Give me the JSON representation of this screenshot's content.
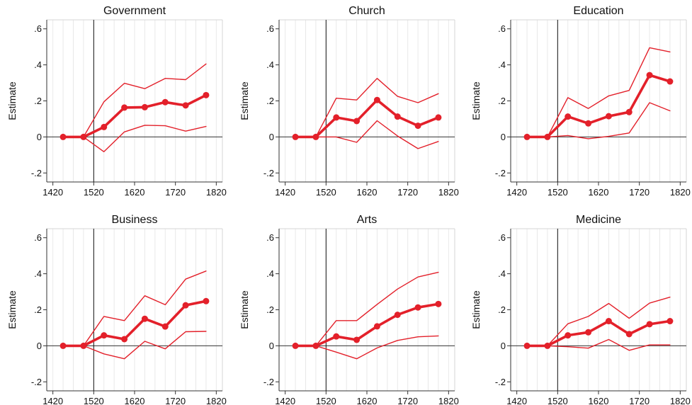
{
  "chart_data": [
    {
      "type": "line",
      "title": "Government",
      "ylabel": "Estimate",
      "xlabel": "",
      "xlim": [
        1405,
        1835
      ],
      "ylim": [
        -0.25,
        0.65
      ],
      "xticks": [
        1420,
        1520,
        1620,
        1720,
        1820
      ],
      "xtick_labels": [
        "1420",
        "1520",
        "1620",
        "1720",
        "1820"
      ],
      "yticks": [
        -0.2,
        0,
        0.2,
        0.4,
        0.6
      ],
      "ytick_labels": [
        "-.2",
        "0",
        ".2",
        ".4",
        ".6"
      ],
      "vline": 1520,
      "x": [
        1445,
        1495,
        1545,
        1595,
        1645,
        1695,
        1745,
        1795
      ],
      "series": [
        {
          "role": "estimate",
          "values": [
            0,
            0,
            0.055,
            0.163,
            0.165,
            0.193,
            0.175,
            0.232
          ]
        },
        {
          "role": "upper",
          "values": [
            0,
            0,
            0.195,
            0.298,
            0.268,
            0.325,
            0.318,
            0.405
          ]
        },
        {
          "role": "lower",
          "values": [
            0,
            0,
            -0.082,
            0.028,
            0.065,
            0.062,
            0.032,
            0.058
          ]
        }
      ]
    },
    {
      "type": "line",
      "title": "Church",
      "ylabel": "Estimate",
      "xlabel": "",
      "xlim": [
        1405,
        1835
      ],
      "ylim": [
        -0.25,
        0.65
      ],
      "xticks": [
        1420,
        1520,
        1620,
        1720,
        1820
      ],
      "xtick_labels": [
        "1420",
        "1520",
        "1620",
        "1720",
        "1820"
      ],
      "yticks": [
        -0.2,
        0,
        0.2,
        0.4,
        0.6
      ],
      "ytick_labels": [
        "-.2",
        "0",
        ".2",
        ".4",
        ".6"
      ],
      "vline": 1520,
      "x": [
        1445,
        1495,
        1545,
        1595,
        1645,
        1695,
        1745,
        1795
      ],
      "series": [
        {
          "role": "estimate",
          "values": [
            0,
            0,
            0.108,
            0.088,
            0.205,
            0.113,
            0.062,
            0.108
          ]
        },
        {
          "role": "upper",
          "values": [
            0,
            0,
            0.215,
            0.205,
            0.325,
            0.225,
            0.19,
            0.24
          ]
        },
        {
          "role": "lower",
          "values": [
            0,
            0,
            0.0,
            -0.03,
            0.09,
            0.005,
            -0.065,
            -0.025
          ]
        }
      ]
    },
    {
      "type": "line",
      "title": "Education",
      "ylabel": "Estimate",
      "xlabel": "",
      "xlim": [
        1405,
        1835
      ],
      "ylim": [
        -0.25,
        0.65
      ],
      "xticks": [
        1420,
        1520,
        1620,
        1720,
        1820
      ],
      "xtick_labels": [
        "1420",
        "1520",
        "1620",
        "1720",
        "1820"
      ],
      "yticks": [
        -0.2,
        0,
        0.2,
        0.4,
        0.6
      ],
      "ytick_labels": [
        "-.2",
        "0",
        ".2",
        ".4",
        ".6"
      ],
      "vline": 1520,
      "x": [
        1445,
        1495,
        1545,
        1595,
        1645,
        1695,
        1745,
        1795
      ],
      "series": [
        {
          "role": "estimate",
          "values": [
            0,
            0,
            0.113,
            0.075,
            0.115,
            0.138,
            0.343,
            0.308
          ]
        },
        {
          "role": "upper",
          "values": [
            0,
            0,
            0.218,
            0.158,
            0.228,
            0.258,
            0.495,
            0.472
          ]
        },
        {
          "role": "lower",
          "values": [
            0,
            0,
            0.008,
            -0.01,
            0.003,
            0.022,
            0.19,
            0.145
          ]
        }
      ]
    },
    {
      "type": "line",
      "title": "Business",
      "ylabel": "Estimate",
      "xlabel": "",
      "xlim": [
        1405,
        1835
      ],
      "ylim": [
        -0.25,
        0.65
      ],
      "xticks": [
        1420,
        1520,
        1620,
        1720,
        1820
      ],
      "xtick_labels": [
        "1420",
        "1520",
        "1620",
        "1720",
        "1820"
      ],
      "yticks": [
        -0.2,
        0,
        0.2,
        0.4,
        0.6
      ],
      "ytick_labels": [
        "-.2",
        "0",
        ".2",
        ".4",
        ".6"
      ],
      "vline": 1520,
      "x": [
        1445,
        1495,
        1545,
        1595,
        1645,
        1695,
        1745,
        1795
      ],
      "series": [
        {
          "role": "estimate",
          "values": [
            0,
            0,
            0.058,
            0.037,
            0.15,
            0.107,
            0.225,
            0.248
          ]
        },
        {
          "role": "upper",
          "values": [
            0,
            0,
            0.163,
            0.14,
            0.278,
            0.228,
            0.37,
            0.415
          ]
        },
        {
          "role": "lower",
          "values": [
            0,
            0,
            -0.045,
            -0.072,
            0.025,
            -0.017,
            0.078,
            0.08
          ]
        }
      ]
    },
    {
      "type": "line",
      "title": "Arts",
      "ylabel": "Estimate",
      "xlabel": "",
      "xlim": [
        1405,
        1835
      ],
      "ylim": [
        -0.25,
        0.65
      ],
      "xticks": [
        1420,
        1520,
        1620,
        1720,
        1820
      ],
      "xtick_labels": [
        "1420",
        "1520",
        "1620",
        "1720",
        "1820"
      ],
      "yticks": [
        -0.2,
        0,
        0.2,
        0.4,
        0.6
      ],
      "ytick_labels": [
        "-.2",
        "0",
        ".2",
        ".4",
        ".6"
      ],
      "vline": 1520,
      "x": [
        1445,
        1495,
        1545,
        1595,
        1645,
        1695,
        1745,
        1795
      ],
      "series": [
        {
          "role": "estimate",
          "values": [
            0,
            0,
            0.052,
            0.033,
            0.108,
            0.172,
            0.213,
            0.232
          ]
        },
        {
          "role": "upper",
          "values": [
            0,
            0,
            0.14,
            0.14,
            0.23,
            0.315,
            0.382,
            0.408
          ]
        },
        {
          "role": "lower",
          "values": [
            0,
            0,
            -0.035,
            -0.072,
            -0.012,
            0.03,
            0.05,
            0.055
          ]
        }
      ]
    },
    {
      "type": "line",
      "title": "Medicine",
      "ylabel": "Estimate",
      "xlabel": "",
      "xlim": [
        1405,
        1835
      ],
      "ylim": [
        -0.25,
        0.65
      ],
      "xticks": [
        1420,
        1520,
        1620,
        1720,
        1820
      ],
      "xtick_labels": [
        "1420",
        "1520",
        "1620",
        "1720",
        "1820"
      ],
      "yticks": [
        -0.2,
        0,
        0.2,
        0.4,
        0.6
      ],
      "ytick_labels": [
        "-.2",
        "0",
        ".2",
        ".4",
        ".6"
      ],
      "vline": 1520,
      "x": [
        1445,
        1495,
        1545,
        1595,
        1645,
        1695,
        1745,
        1795
      ],
      "series": [
        {
          "role": "estimate",
          "values": [
            0,
            0,
            0.058,
            0.075,
            0.137,
            0.065,
            0.12,
            0.137
          ]
        },
        {
          "role": "upper",
          "values": [
            0,
            0,
            0.122,
            0.163,
            0.235,
            0.153,
            0.237,
            0.27
          ]
        },
        {
          "role": "lower",
          "values": [
            0,
            0,
            -0.005,
            -0.013,
            0.035,
            -0.025,
            0.005,
            0.005
          ]
        }
      ]
    }
  ],
  "colors": {
    "estimate": "#e3202a",
    "band": "#e3202a",
    "axis": "#333333",
    "grid": "#e8e8e8",
    "frame": "#d6d6d6"
  }
}
